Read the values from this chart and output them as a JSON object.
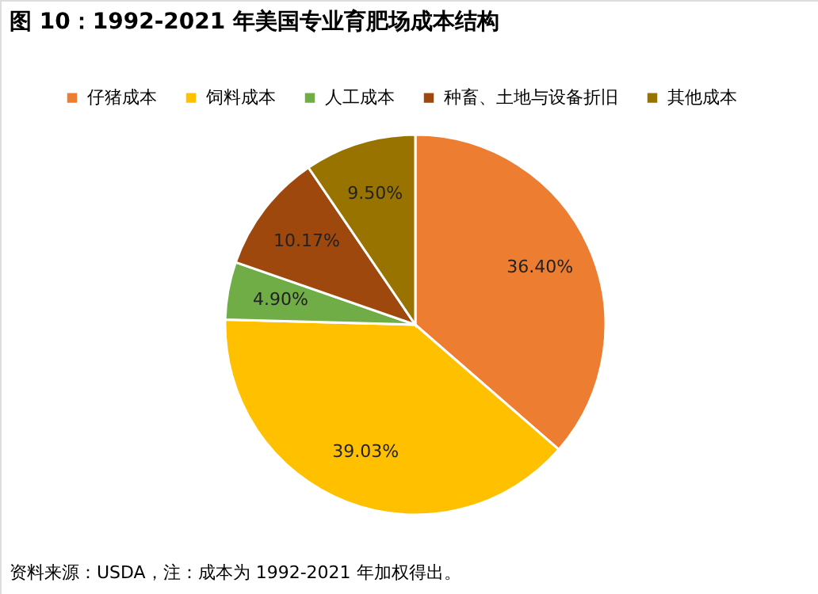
{
  "chart_data": {
    "type": "pie",
    "title": "图 10：1992-2021 年美国专业育肥场成本结构",
    "categories": [
      "仔猪成本",
      "饲料成本",
      "人工成本",
      "种畜、土地与设备折旧",
      "其他成本"
    ],
    "values": [
      36.4,
      39.03,
      4.9,
      10.17,
      9.5
    ],
    "colors": [
      "#ed7d31",
      "#ffc000",
      "#70ad47",
      "#9e480e",
      "#997300"
    ],
    "value_labels": [
      "36.40%",
      "39.03%",
      "4.90%",
      "10.17%",
      "9.50%"
    ],
    "legend": "top",
    "annotations": [
      "资料来源：USDA，注：成本为 1992-2021 年加权得出。"
    ]
  }
}
